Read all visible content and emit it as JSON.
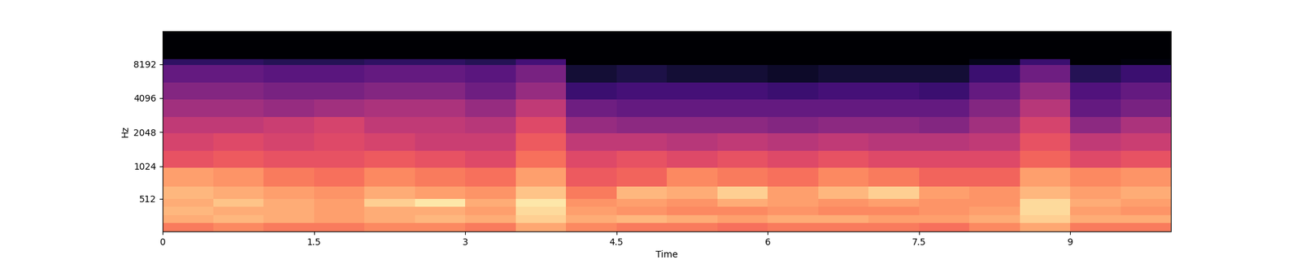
{
  "chart_data": {
    "type": "heatmap",
    "x_label": "Time",
    "y_label": "Hz",
    "xlim": [
      0,
      10.0
    ],
    "xticks": [
      0,
      1.5,
      3,
      4.5,
      6,
      7.5,
      9
    ],
    "ylim": [
      0,
      16000
    ],
    "yticks": [
      512,
      1024,
      2048,
      4096,
      8192
    ],
    "zlim": [
      -80,
      0
    ],
    "x_edges": [
      0,
      0.5,
      1,
      1.5,
      2,
      2.5,
      3,
      3.5,
      4,
      4.5,
      5,
      5.5,
      6,
      6.5,
      7,
      7.5,
      8,
      8.5,
      9,
      9.5,
      10.0
    ],
    "y_edges": [
      0,
      128,
      256,
      384,
      512,
      700,
      1000,
      1400,
      2000,
      2800,
      4000,
      5600,
      8000,
      9000,
      16000
    ],
    "cells": [
      [
        -22,
        -20,
        -22,
        -22,
        -20,
        -20,
        -22,
        -15,
        -20,
        -22,
        -22,
        -24,
        -22,
        -22,
        -22,
        -24,
        -20,
        -15,
        -22,
        -22
      ],
      [
        -14,
        -12,
        -14,
        -16,
        -14,
        -12,
        -14,
        -8,
        -14,
        -12,
        -14,
        -16,
        -14,
        -14,
        -16,
        -16,
        -14,
        -8,
        -14,
        -14
      ],
      [
        -12,
        -14,
        -14,
        -16,
        -14,
        -14,
        -16,
        -6,
        -16,
        -18,
        -20,
        -20,
        -18,
        -20,
        -20,
        -18,
        -16,
        -6,
        -16,
        -18
      ],
      [
        -14,
        -10,
        -14,
        -16,
        -8,
        -4,
        -14,
        -4,
        -18,
        -16,
        -18,
        -14,
        -16,
        -18,
        -16,
        -18,
        -18,
        -6,
        -14,
        -16
      ],
      [
        -12,
        -14,
        -16,
        -18,
        -14,
        -16,
        -18,
        -10,
        -22,
        -12,
        -14,
        -8,
        -16,
        -12,
        -8,
        -16,
        -18,
        -12,
        -16,
        -14
      ],
      [
        -16,
        -18,
        -22,
        -24,
        -20,
        -22,
        -24,
        -16,
        -28,
        -26,
        -20,
        -22,
        -24,
        -20,
        -22,
        -26,
        -26,
        -16,
        -20,
        -18
      ],
      [
        -30,
        -28,
        -30,
        -30,
        -28,
        -30,
        -32,
        -24,
        -32,
        -30,
        -32,
        -30,
        -32,
        -30,
        -32,
        -32,
        -32,
        -26,
        -32,
        -30
      ],
      [
        -34,
        -32,
        -34,
        -32,
        -34,
        -36,
        -36,
        -28,
        -38,
        -38,
        -40,
        -38,
        -40,
        -38,
        -40,
        -40,
        -38,
        -30,
        -38,
        -36
      ],
      [
        -38,
        -38,
        -36,
        -34,
        -38,
        -38,
        -40,
        -32,
        -46,
        -48,
        -48,
        -48,
        -50,
        -48,
        -48,
        -50,
        -44,
        -34,
        -48,
        -42
      ],
      [
        -44,
        -44,
        -46,
        -44,
        -42,
        -42,
        -46,
        -38,
        -54,
        -56,
        -56,
        -56,
        -56,
        -56,
        -56,
        -56,
        -50,
        -40,
        -56,
        -52
      ],
      [
        -50,
        -50,
        -52,
        -52,
        -50,
        -50,
        -54,
        -46,
        -64,
        -62,
        -62,
        -62,
        -64,
        -62,
        -62,
        -64,
        -56,
        -46,
        -60,
        -56
      ],
      [
        -56,
        -56,
        -58,
        -58,
        -56,
        -56,
        -58,
        -52,
        -72,
        -70,
        -72,
        -72,
        -74,
        -72,
        -72,
        -72,
        -64,
        -54,
        -68,
        -64
      ],
      [
        -66,
        -66,
        -68,
        -68,
        -66,
        -66,
        -68,
        -62,
        -80,
        -80,
        -80,
        -80,
        -80,
        -80,
        -80,
        -80,
        -76,
        -64,
        -80,
        -78
      ],
      [
        -80,
        -80,
        -80,
        -80,
        -80,
        -80,
        -80,
        -80,
        -80,
        -80,
        -80,
        -80,
        -80,
        -80,
        -80,
        -80,
        -80,
        -80,
        -80,
        -80
      ]
    ]
  }
}
